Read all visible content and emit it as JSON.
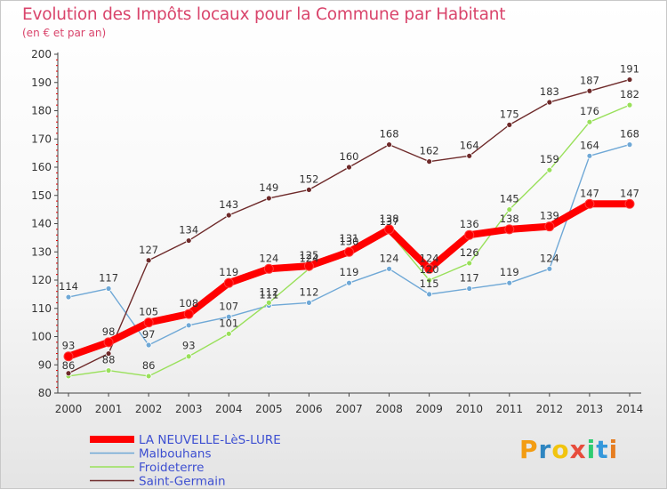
{
  "chart_data": {
    "type": "line",
    "title": "Evolution des Impôts locaux pour la Commune par Habitant",
    "subtitle": "(en € et par an)",
    "x": [
      "2000",
      "2001",
      "2002",
      "2003",
      "2004",
      "2005",
      "2006",
      "2007",
      "2008",
      "2009",
      "2010",
      "2011",
      "2012",
      "2013",
      "2014"
    ],
    "y_ticks": [
      "80",
      "90",
      "100",
      "110",
      "120",
      "130",
      "140",
      "150",
      "160",
      "170",
      "180",
      "190",
      "200"
    ],
    "ylim": [
      80,
      200
    ],
    "grid": false,
    "legend_position": "bottom-left",
    "series": [
      {
        "name": "LA NEUVELLE-LèS-LURE",
        "color": "#ff0000",
        "emphasis": true,
        "values": [
          93,
          98,
          105,
          108,
          119,
          124,
          125,
          130,
          138,
          124,
          136,
          138,
          139,
          147,
          147
        ],
        "labels": [
          "93",
          "98",
          "105",
          "108",
          "119",
          "124",
          "125",
          "130",
          "138",
          "124",
          "136",
          "138",
          "139",
          "147",
          "147"
        ]
      },
      {
        "name": "Malbouhans",
        "color": "#6fa8d6",
        "values": [
          114,
          117,
          97,
          104,
          107,
          111,
          112,
          119,
          124,
          115,
          117,
          119,
          124,
          164,
          168
        ],
        "labels": [
          "114",
          "117",
          "97",
          "",
          "107",
          "111",
          "112",
          "119",
          "124",
          "115",
          "117",
          "119",
          "124",
          "164",
          "168"
        ]
      },
      {
        "name": "Froideterre",
        "color": "#99e05a",
        "values": [
          86,
          88,
          86,
          93,
          101,
          112,
          124,
          131,
          137,
          120,
          126,
          145,
          159,
          176,
          182
        ],
        "labels": [
          "86",
          "88",
          "86",
          "93",
          "101",
          "112",
          "124",
          "131",
          "137",
          "120",
          "126",
          "145",
          "159",
          "176",
          "182"
        ]
      },
      {
        "name": "Saint-Germain",
        "color": "#6e2a2a",
        "values": [
          87,
          94,
          127,
          134,
          143,
          149,
          152,
          160,
          168,
          162,
          164,
          175,
          183,
          187,
          191
        ],
        "labels": [
          "",
          "",
          "127",
          "134",
          "143",
          "149",
          "152",
          "160",
          "168",
          "162",
          "164",
          "175",
          "183",
          "187",
          "191"
        ]
      }
    ]
  },
  "logo": {
    "text": "Proxiti",
    "colors": [
      "#f39c12",
      "#2e86c1",
      "#f1c40f",
      "#e74c3c",
      "#2ecc71",
      "#3498db",
      "#e67e22"
    ]
  }
}
